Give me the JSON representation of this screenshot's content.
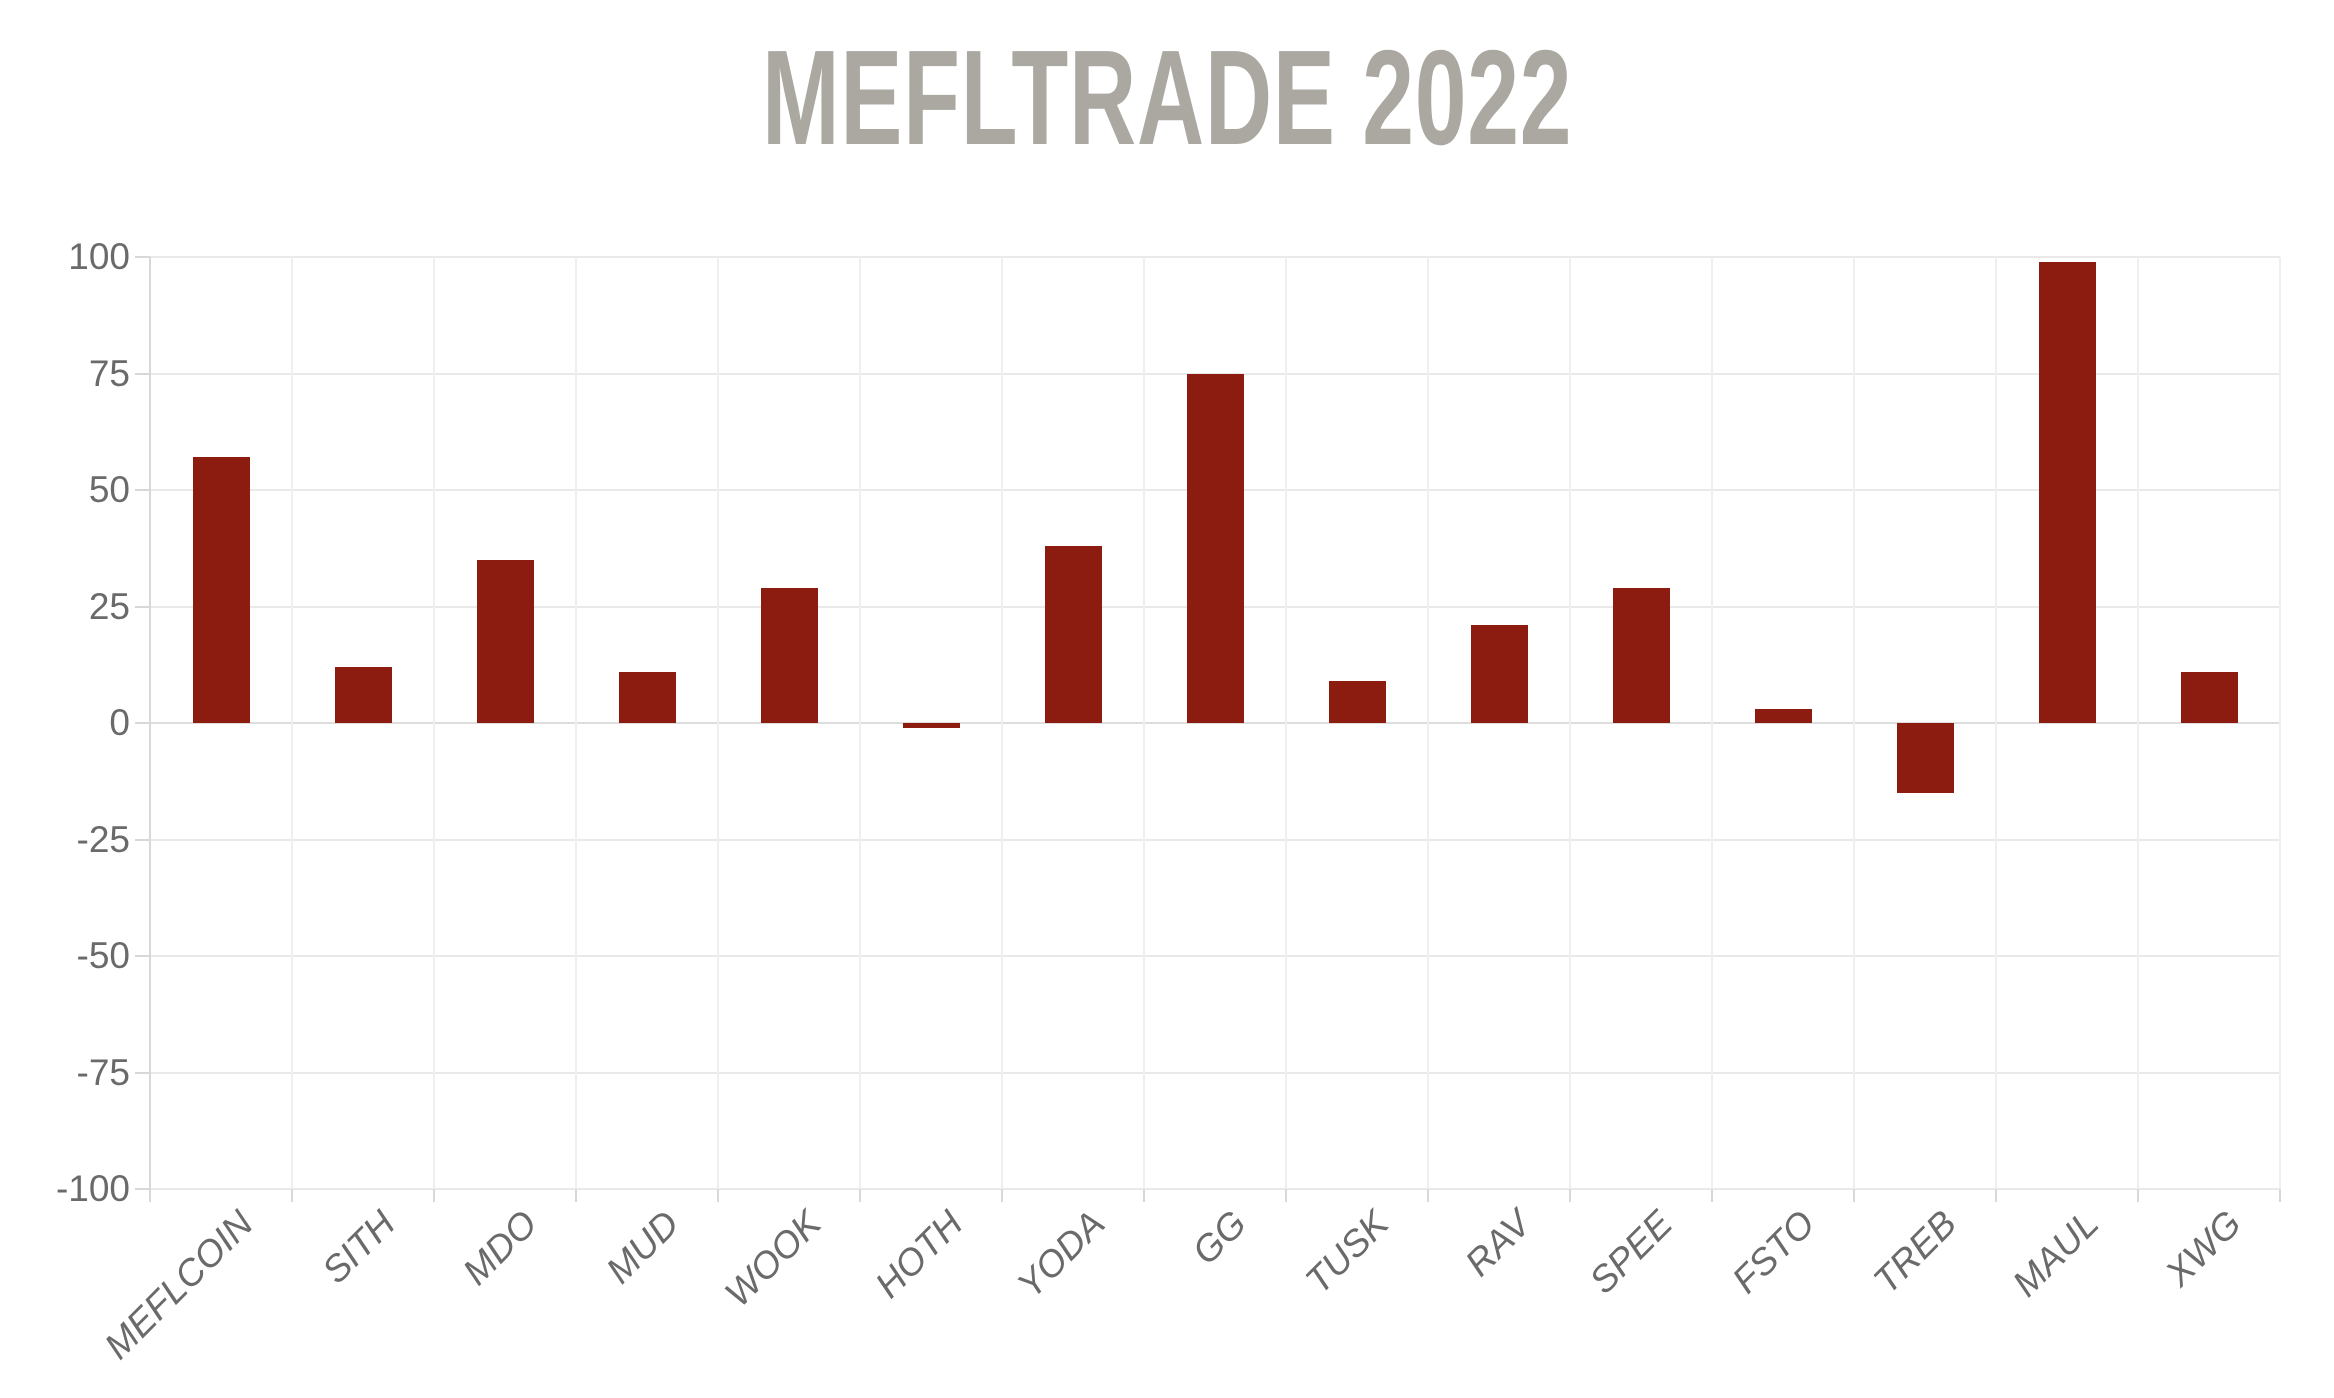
{
  "page": {
    "background_color": "#ffffff"
  },
  "chart": {
    "title_color": "#aaa8a0",
    "bar_color": "#8c1b10",
    "tick_label_color": "#6a6a6a",
    "gridline_color": "#e9e9e9",
    "vertical_gridline_color": "#efefef",
    "zeroline_color": "#dddddd",
    "axis_line_color": "#d8d8d8"
  },
  "chart_data": {
    "type": "bar",
    "title": "MEFLTRADE 2022",
    "categories": [
      "MEFLCOIN",
      "SITH",
      "MDO",
      "MUD",
      "WOOK",
      "HOTH",
      "YODA",
      "GG",
      "TUSK",
      "RAV",
      "SPEE",
      "FSTO",
      "TREB",
      "MAUL",
      "XWG"
    ],
    "values": [
      57,
      12,
      35,
      11,
      29,
      -1,
      38,
      75,
      9,
      21,
      29,
      3,
      -15,
      99,
      11
    ],
    "xlabel": "",
    "ylabel": "",
    "ylim": [
      -100,
      100
    ],
    "yticks": [
      100,
      75,
      50,
      25,
      0,
      -25,
      -50,
      -75,
      -100
    ],
    "grid": true,
    "legend": false,
    "bar_color": "#8c1b10"
  }
}
